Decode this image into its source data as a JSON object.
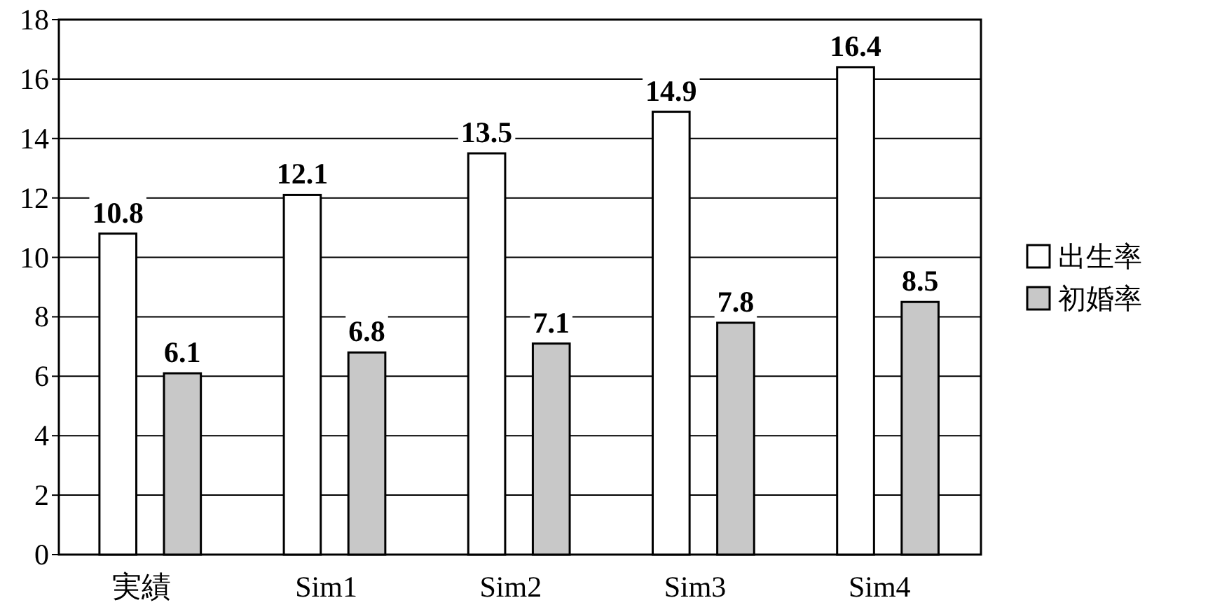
{
  "chart_data": {
    "type": "bar",
    "categories": [
      "実績",
      "Sim1",
      "Sim2",
      "Sim3",
      "Sim4"
    ],
    "series": [
      {
        "name": "出生率",
        "color": "#ffffff",
        "values": [
          10.8,
          12.1,
          13.5,
          14.9,
          16.4
        ]
      },
      {
        "name": "初婚率",
        "color": "#c8c8c8",
        "values": [
          6.1,
          6.8,
          7.1,
          7.8,
          8.5
        ]
      }
    ],
    "ylim": [
      0,
      18
    ],
    "yticks": [
      0,
      2,
      4,
      6,
      8,
      10,
      12,
      14,
      16,
      18
    ],
    "grid": "y",
    "legend": "right",
    "data_labels": true
  }
}
